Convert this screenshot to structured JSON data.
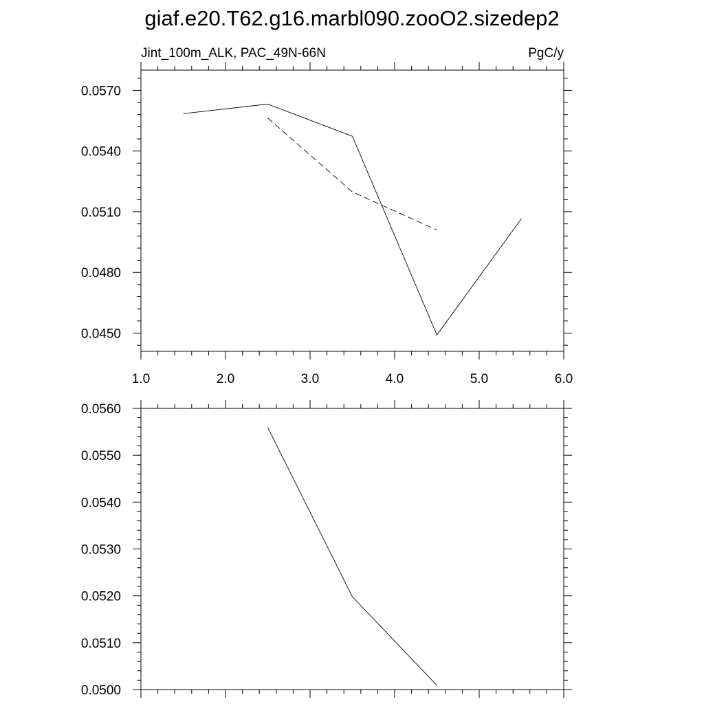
{
  "title": "giaf.e20.T62.g16.marbl090.zooO2.sizedep2",
  "chart_data": [
    {
      "type": "line",
      "left_label": "Jint_100m_ALK, PAC_49N-66N",
      "right_label": "PgC/y",
      "xlim": [
        1.0,
        6.0
      ],
      "ylim": [
        0.0441,
        0.058
      ],
      "x_ticks": [
        1.0,
        2.0,
        3.0,
        4.0,
        5.0,
        6.0
      ],
      "x_tick_labels": [
        "1.0",
        "2.0",
        "3.0",
        "4.0",
        "5.0",
        "6.0"
      ],
      "y_ticks": [
        0.045,
        0.048,
        0.051,
        0.054,
        0.057
      ],
      "y_tick_labels": [
        "0.0450",
        "0.0480",
        "0.0510",
        "0.0540",
        "0.0570"
      ],
      "series": [
        {
          "style": "solid",
          "x": [
            1.5,
            2.5,
            3.5,
            4.5,
            5.5
          ],
          "y": [
            0.05585,
            0.05632,
            0.05473,
            0.04491,
            0.05066
          ]
        },
        {
          "style": "dashed",
          "x": [
            2.5,
            3.5,
            4.5
          ],
          "y": [
            0.05563,
            0.05198,
            0.0501
          ]
        }
      ],
      "grid": false
    },
    {
      "type": "line",
      "xlim": [
        1.0,
        6.0
      ],
      "ylim": [
        0.05,
        0.056
      ],
      "y_ticks": [
        0.05,
        0.051,
        0.052,
        0.053,
        0.054,
        0.055,
        0.056
      ],
      "y_tick_labels": [
        "0.0500",
        "0.0510",
        "0.0520",
        "0.0530",
        "0.0540",
        "0.0550",
        "0.0560"
      ],
      "series": [
        {
          "style": "solid",
          "x": [
            2.5,
            3.5,
            4.5
          ],
          "y": [
            0.05559,
            0.05198,
            0.05009
          ]
        }
      ],
      "grid": false
    }
  ]
}
